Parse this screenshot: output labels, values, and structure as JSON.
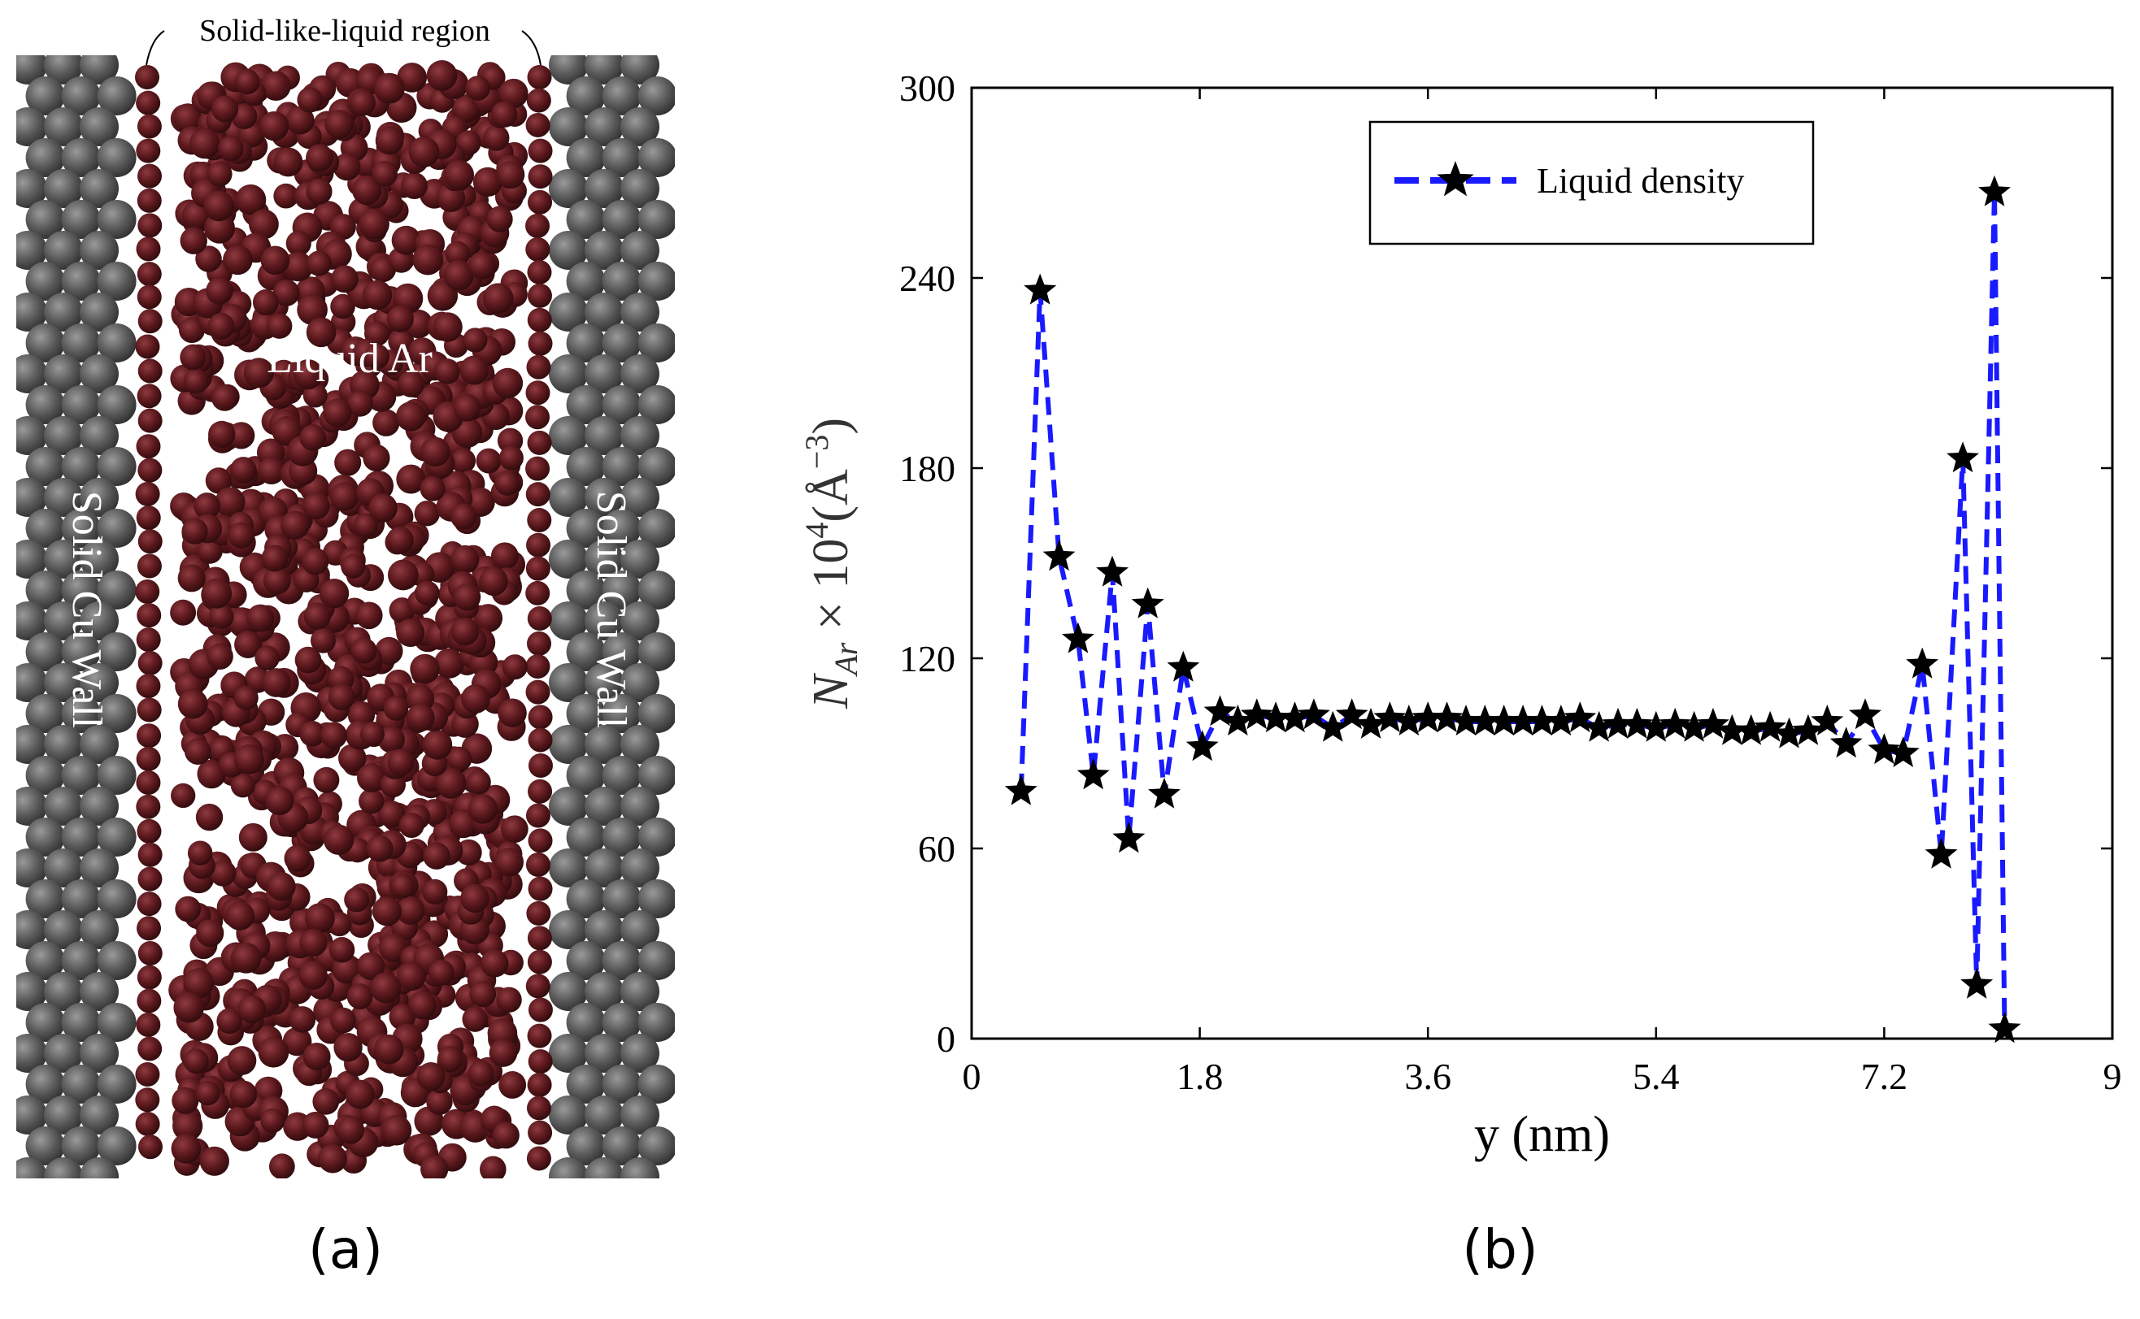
{
  "panel_a": {
    "label": "(a)",
    "annotation_top": "Solid-like-liquid region",
    "center_label": "Liquid Ar",
    "wall_left_label": "Solid Cu Wall",
    "wall_right_label": "Solid Cu Wall",
    "colors": {
      "wall": "#5a5a5a",
      "wall_highlight": "#8a8a8a",
      "liquid": "#5c1a1e",
      "liquid_highlight": "#8a3a3e"
    }
  },
  "panel_b": {
    "label": "(b)"
  },
  "chart_data": {
    "type": "line",
    "title": "",
    "xlabel": "y (nm)",
    "ylabel_main": "N",
    "ylabel_sub": "Ar",
    "ylabel_times": "× 10",
    "ylabel_exp": "4",
    "ylabel_unit_open": "(Å",
    "ylabel_unit_exp": "−3",
    "ylabel_unit_close": ")",
    "xlim": [
      0,
      9
    ],
    "ylim": [
      0,
      300
    ],
    "xticks": [
      0,
      1.8,
      3.6,
      5.4,
      7.2,
      9
    ],
    "xtick_labels": [
      "0",
      "1.8",
      "3.6",
      "5.4",
      "7.2",
      "9"
    ],
    "yticks": [
      0,
      60,
      120,
      180,
      240,
      300
    ],
    "ytick_labels": [
      "0",
      "60",
      "120",
      "180",
      "240",
      "300"
    ],
    "legend_position": "top-center",
    "grid": false,
    "series": [
      {
        "name": "Liquid density",
        "line_color": "#1a1aff",
        "marker_color": "#000000",
        "line_style": "dashed",
        "marker": "star",
        "x": [
          0.39,
          0.54,
          0.69,
          0.84,
          0.96,
          1.11,
          1.24,
          1.39,
          1.52,
          1.67,
          1.82,
          1.96,
          2.1,
          2.25,
          2.4,
          2.55,
          2.7,
          2.85,
          3.0,
          3.15,
          3.3,
          3.45,
          3.6,
          3.75,
          3.9,
          4.05,
          4.2,
          4.35,
          4.5,
          4.65,
          4.8,
          4.95,
          5.1,
          5.25,
          5.4,
          5.55,
          5.7,
          5.85,
          6.0,
          6.15,
          6.3,
          6.45,
          6.6,
          6.75,
          6.9,
          7.05,
          7.2,
          7.35,
          7.5,
          7.65,
          7.82,
          7.93,
          8.07,
          8.15
        ],
        "y": [
          78,
          236,
          152,
          126,
          83,
          147,
          63,
          137,
          77,
          117,
          92,
          103,
          100,
          102,
          101,
          101,
          102,
          98,
          102,
          99,
          101,
          100,
          101,
          101,
          100,
          100,
          100,
          100,
          100,
          100,
          101,
          98,
          99,
          99,
          98,
          99,
          98,
          99,
          97,
          97,
          98,
          96,
          97,
          100,
          93,
          102,
          91,
          90,
          118,
          58,
          183,
          17,
          267,
          3
        ]
      }
    ]
  }
}
